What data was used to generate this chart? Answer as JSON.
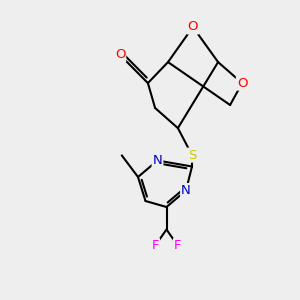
{
  "bg_color": "#eeeeee",
  "bond_color": "#000000",
  "atom_colors": {
    "O": "#ff0000",
    "N": "#0000cc",
    "S": "#cccc00",
    "F": "#ff00ff",
    "C": "#000000"
  },
  "figsize": [
    3.0,
    3.0
  ],
  "dpi": 100,
  "bond_lw": 1.5,
  "font_size": 9.5
}
